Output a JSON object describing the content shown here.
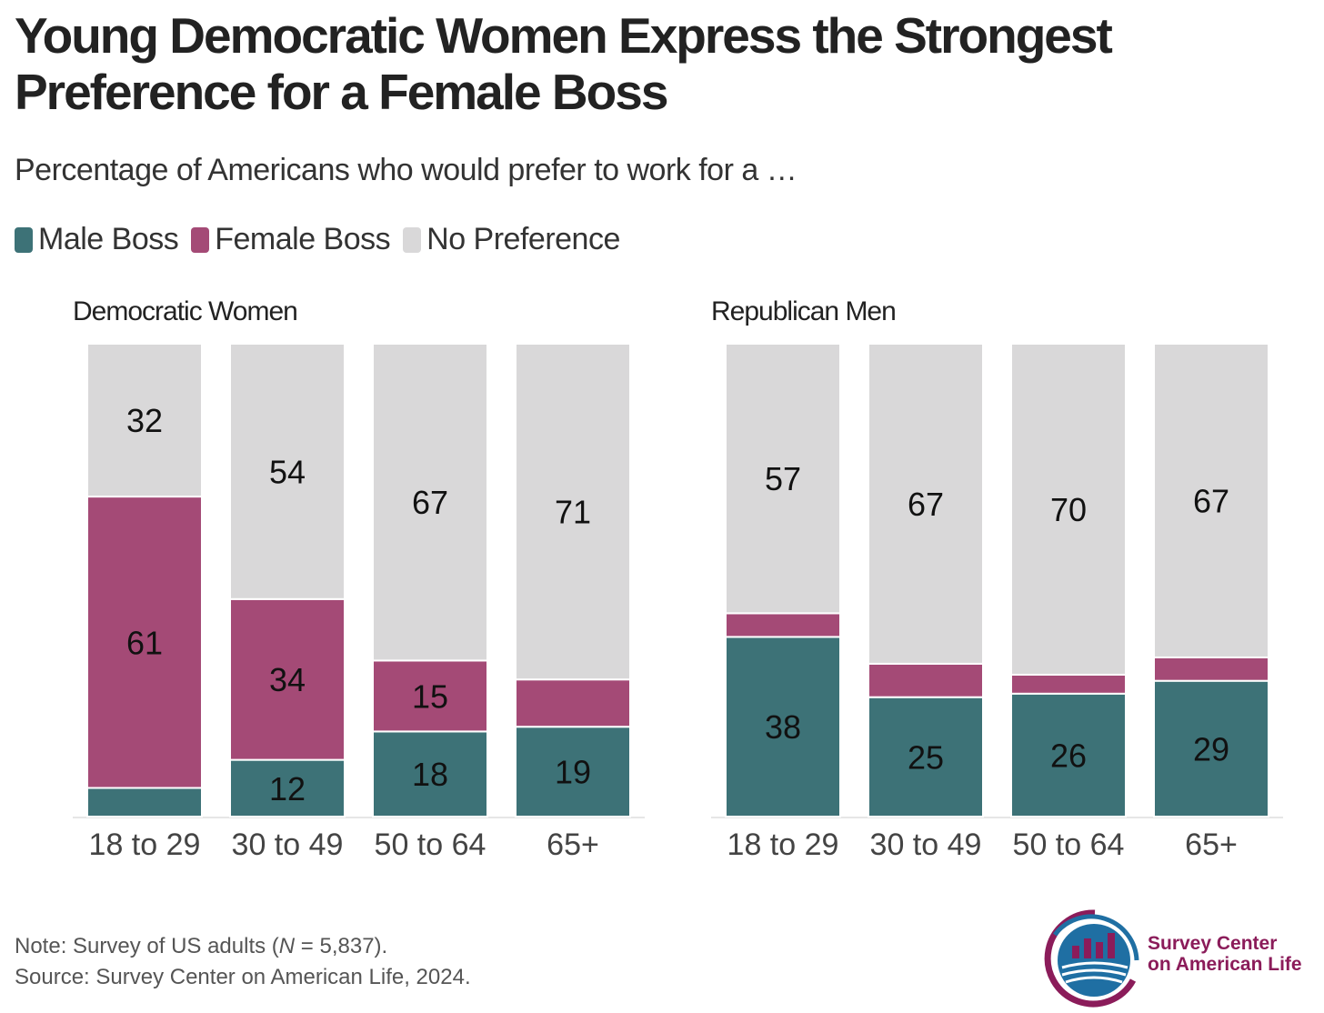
{
  "title": "Young Democratic Women Express the Strongest Preference for a Female Boss",
  "subtitle": "Percentage of Americans who would prefer to work for a …",
  "legend": [
    {
      "label": "Male Boss",
      "color": "#3d7277"
    },
    {
      "label": "Female Boss",
      "color": "#a44a76"
    },
    {
      "label": "No Preference",
      "color": "#d9d8d9"
    }
  ],
  "chart_data": [
    {
      "type": "bar",
      "stacked": true,
      "title": "Democratic Women",
      "categories": [
        "18 to 29",
        "30 to 49",
        "50 to 64",
        "65+"
      ],
      "series": [
        {
          "name": "Male Boss",
          "values": [
            6,
            12,
            18,
            19
          ],
          "labels": [
            "",
            "12",
            "18",
            "19"
          ]
        },
        {
          "name": "Female Boss",
          "values": [
            61,
            34,
            15,
            10
          ],
          "labels": [
            "61",
            "34",
            "15",
            ""
          ]
        },
        {
          "name": "No Preference",
          "values": [
            32,
            54,
            67,
            71
          ],
          "labels": [
            "32",
            "54",
            "67",
            "71"
          ]
        }
      ],
      "ylim": [
        0,
        100
      ]
    },
    {
      "type": "bar",
      "stacked": true,
      "title": "Republican Men",
      "categories": [
        "18 to 29",
        "30 to 49",
        "50 to 64",
        "65+"
      ],
      "series": [
        {
          "name": "Male Boss",
          "values": [
            38,
            25,
            26,
            29
          ],
          "labels": [
            "38",
            "25",
            "26",
            "29"
          ]
        },
        {
          "name": "Female Boss",
          "values": [
            5,
            7,
            4,
            5
          ],
          "labels": [
            "",
            "",
            "",
            ""
          ]
        },
        {
          "name": "No Preference",
          "values": [
            57,
            67,
            70,
            67
          ],
          "labels": [
            "57",
            "67",
            "70",
            "67"
          ]
        }
      ],
      "ylim": [
        0,
        100
      ]
    }
  ],
  "note": {
    "prefix": "Note: Survey of US adults (",
    "n_symbol": "N",
    "n_value": " = 5,837).",
    "source": "Source: Survey Center on American Life, 2024."
  },
  "logo": {
    "line1": "Survey Center",
    "line2": "on American Life",
    "color_purple": "#8b1c5a",
    "color_blue": "#1f6fa3"
  }
}
